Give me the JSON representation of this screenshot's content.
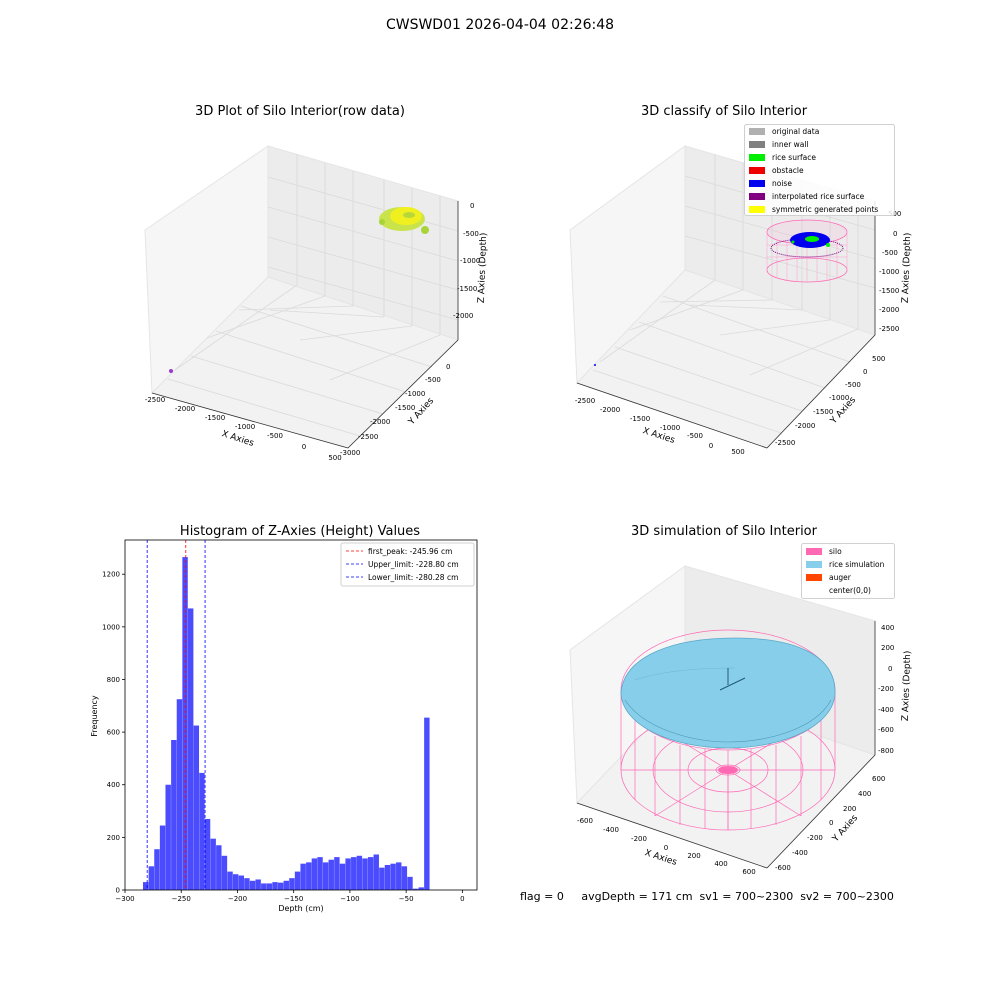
{
  "figure": {
    "title": "CWSWD01 2026-04-04 02:26:48",
    "status_text": "flag = 0     avgDepth = 171 cm  sv1 = 700~2300  sv2 = 700~2300"
  },
  "panels": {
    "raw": {
      "title": "3D Plot of Silo Interior(row data)",
      "x_label": "X Axies",
      "y_label": "Y Axies",
      "z_label": "Z Axies (Depth)",
      "x_ticks": [
        "-2500",
        "-2000",
        "-1500",
        "-1000",
        "-500",
        "0",
        "500"
      ],
      "y_ticks": [
        "0",
        "-500",
        "-1000",
        "-1500",
        "-2000",
        "-2500",
        "-3000"
      ],
      "z_ticks": [
        "0",
        "-500",
        "-1000",
        "-1500",
        "-2000"
      ]
    },
    "classify": {
      "title": "3D classify of Silo Interior",
      "x_label": "X Axies",
      "y_label": "Y Axies",
      "z_label": "Z Axies (Depth)",
      "x_ticks": [
        "-2500",
        "-2000",
        "-1500",
        "-1000",
        "-500",
        "0",
        "500"
      ],
      "y_ticks": [
        "500",
        "0",
        "-500",
        "-1000",
        "-1500",
        "-2000",
        "-2500"
      ],
      "z_ticks": [
        "500",
        "0",
        "-500",
        "-1000",
        "-1500",
        "-2000",
        "-2500"
      ],
      "legend": [
        {
          "label": "original data",
          "color": "#b0b0b0"
        },
        {
          "label": "inner wall",
          "color": "#808080"
        },
        {
          "label": "rice surface",
          "color": "#00ee00"
        },
        {
          "label": "obstacle",
          "color": "#ee0000"
        },
        {
          "label": "noise",
          "color": "#0000ee"
        },
        {
          "label": "interpolated rice surface",
          "color": "#800080"
        },
        {
          "label": "symmetric generated points",
          "color": "#ffff00"
        }
      ]
    },
    "simulation": {
      "title": "3D simulation of Silo Interior",
      "x_label": "X Axies",
      "y_label": "Y Axies",
      "z_label": "Z Axies (Depth)",
      "x_ticks": [
        "-600",
        "-400",
        "-200",
        "0",
        "200",
        "400",
        "600"
      ],
      "y_ticks": [
        "600",
        "400",
        "200",
        "0",
        "-200",
        "-400",
        "-600"
      ],
      "z_ticks": [
        "400",
        "200",
        "0",
        "-200",
        "-400",
        "-600",
        "-800"
      ],
      "legend": [
        {
          "label": "silo",
          "color": "#ff69b4"
        },
        {
          "label": "rice simulation",
          "color": "#87ceeb"
        },
        {
          "label": "auger",
          "color": "#ff4500"
        },
        {
          "label": "center(0,0)",
          "color": ""
        }
      ]
    }
  },
  "chart_data": {
    "type": "bar",
    "title": "Histogram of Z-Axies (Height) Values",
    "xlabel": "Depth (cm)",
    "ylabel": "Frequency",
    "xlim": [
      -300,
      13
    ],
    "ylim": [
      0,
      1330
    ],
    "x_ticks": [
      -300,
      -250,
      -200,
      -150,
      -100,
      -50,
      0
    ],
    "y_ticks": [
      0,
      200,
      400,
      600,
      800,
      1000,
      1200
    ],
    "bar_color": "#0000ff",
    "bin_edges_start": -284,
    "bin_width": 5,
    "values": [
      30,
      90,
      155,
      245,
      400,
      570,
      725,
      1265,
      1070,
      625,
      445,
      270,
      195,
      170,
      130,
      70,
      60,
      55,
      45,
      35,
      40,
      25,
      25,
      30,
      28,
      35,
      45,
      70,
      100,
      105,
      120,
      125,
      105,
      115,
      125,
      100,
      120,
      125,
      130,
      120,
      125,
      135,
      85,
      95,
      100,
      105,
      90,
      50,
      5,
      10,
      655
    ],
    "lines": [
      {
        "label": "first_peak: -245.96 cm",
        "x": -245.96,
        "color": "#ff0000"
      },
      {
        "label": "Upper_limit: -228.80 cm",
        "x": -228.8,
        "color": "#0000ff"
      },
      {
        "label": "Lower_limit: -280.28 cm",
        "x": -280.28,
        "color": "#0000ff"
      }
    ],
    "legend_position": "top-right"
  }
}
